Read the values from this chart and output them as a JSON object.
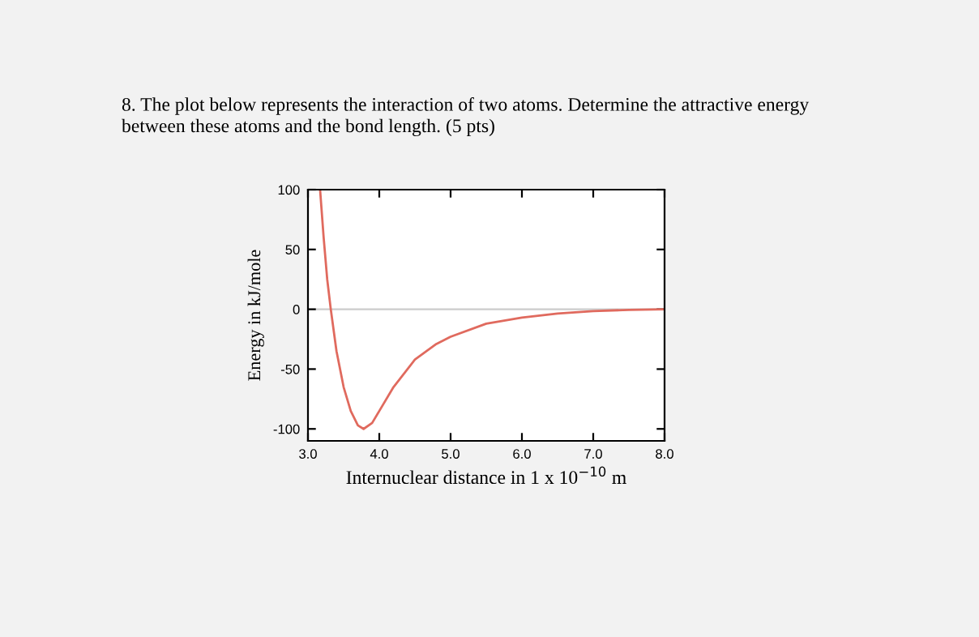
{
  "chart_data": {
    "type": "line",
    "title": "8. The plot below represents the interaction of two atoms. Determine the attractive energy\nbetween these atoms and the bond length. (5 pts)",
    "xlabel": "Internuclear distance in 1 x 10$^{−10}$ m",
    "ylabel": "Energy in kJ/mole",
    "x": [
      3.17,
      3.22,
      3.27,
      3.32,
      3.4,
      3.5,
      3.6,
      3.7,
      3.78,
      3.9,
      4.0,
      4.2,
      4.5,
      4.8,
      5.0,
      5.5,
      6.0,
      6.5,
      7.0,
      7.5,
      8.0
    ],
    "series": [
      {
        "color": "#e06a5e",
        "values": [
          100,
          60,
          25,
          0,
          -35,
          -65,
          -85,
          -97,
          -100,
          -95,
          -85,
          -65,
          -42,
          -29,
          -23,
          -12,
          -7,
          -3.5,
          -1.5,
          -0.5,
          0
        ]
      }
    ],
    "xlim": [
      3.0,
      8.0
    ],
    "ylim": [
      -110,
      100
    ],
    "xticks": [
      {
        "value": 3,
        "label": "3.0"
      },
      {
        "value": 4,
        "label": "4.0"
      },
      {
        "value": 5,
        "label": "5.0"
      },
      {
        "value": 6,
        "label": "6.0"
      },
      {
        "value": 7,
        "label": "7.0"
      },
      {
        "value": 8,
        "label": "8.0"
      }
    ],
    "yticks": [
      -100,
      -50,
      0,
      50,
      100
    ],
    "ref_lines": [
      {
        "axis": "y",
        "value": 0,
        "color": "#cccccc"
      }
    ],
    "grid": false,
    "legend": false,
    "marker": "none",
    "line_style": "solid"
  }
}
